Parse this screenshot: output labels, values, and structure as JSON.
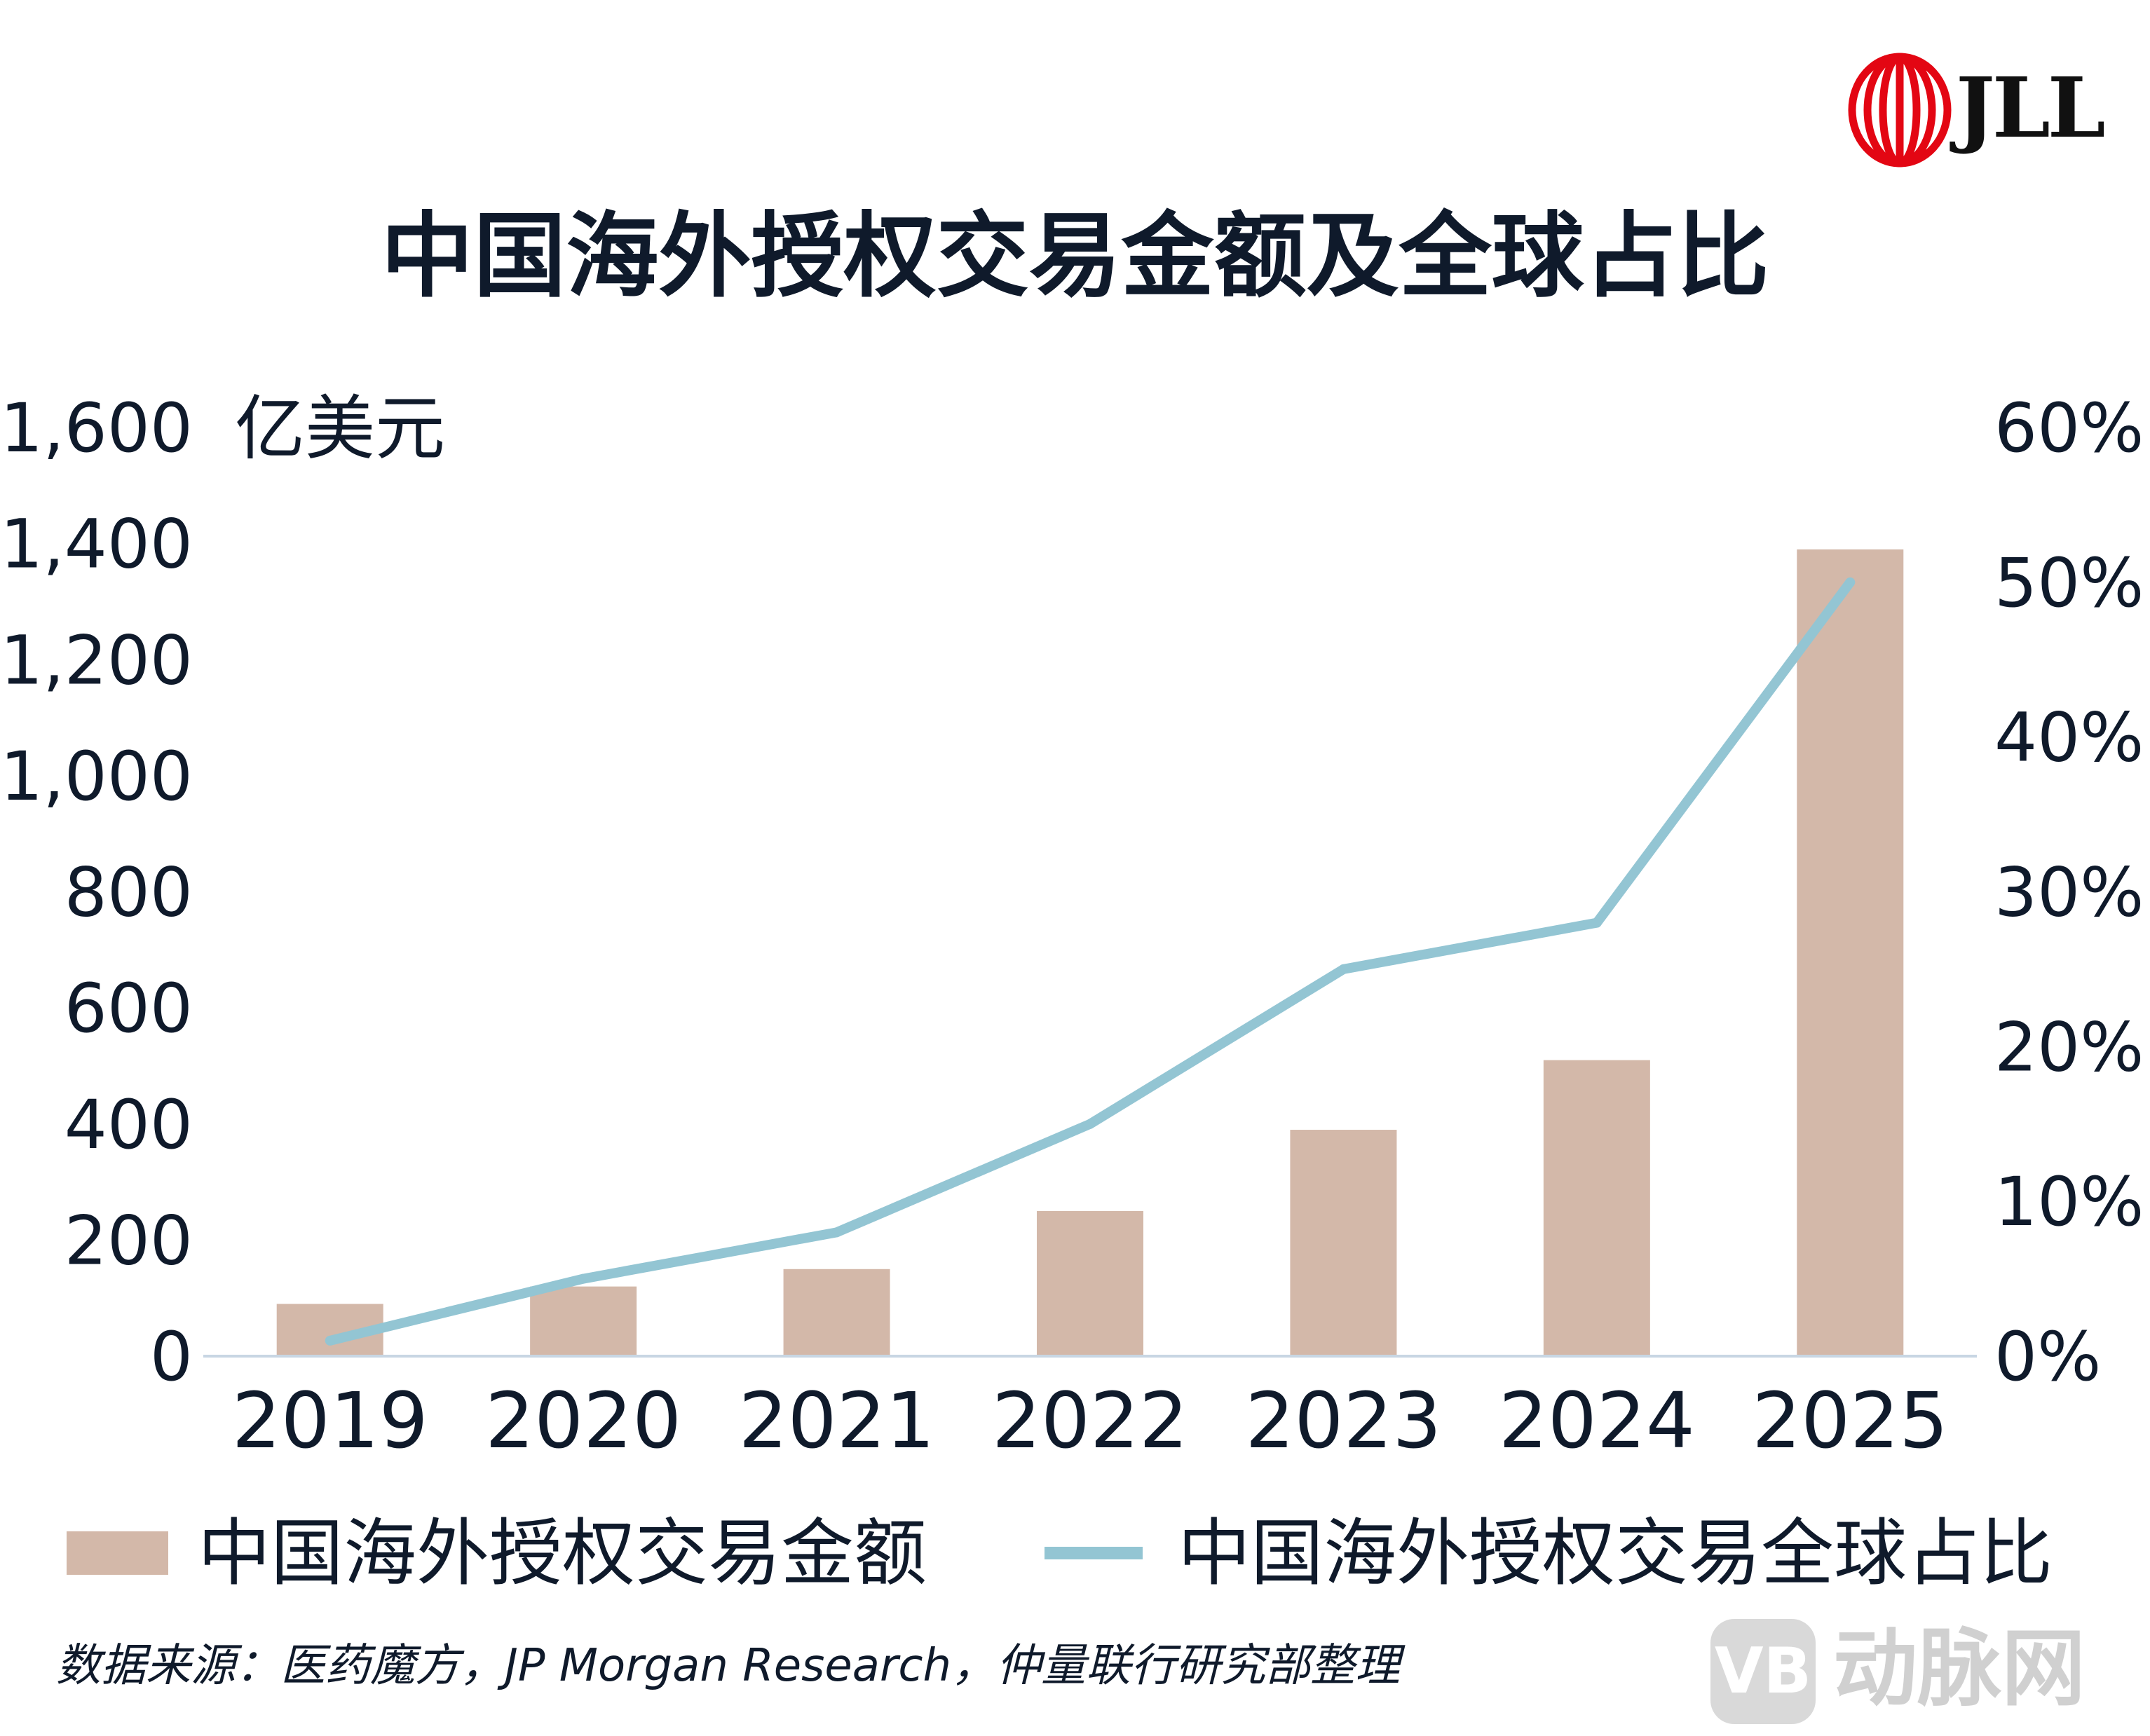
{
  "brand": {
    "logo_text": "JLL",
    "logo_color": "#e30613"
  },
  "watermark": {
    "badge": "VB",
    "text": "动脉网"
  },
  "source": "数据来源：医药魔方，JP Morgan Research，仲量联行研究部整理",
  "chart_data": {
    "type": "bar",
    "title": "中国海外授权交易金额及全球占比",
    "categories": [
      "2019",
      "2020",
      "2021",
      "2022",
      "2023",
      "2024",
      "2025"
    ],
    "y_left": {
      "unit_label": "亿美元",
      "ylim": [
        0,
        1600
      ],
      "ticks": [
        0,
        200,
        400,
        600,
        800,
        1000,
        1200,
        1400,
        1600
      ],
      "tick_labels": [
        "0",
        "200",
        "400",
        "600",
        "800",
        "1,000",
        "1,200",
        "1,400",
        "1,600"
      ]
    },
    "y_right": {
      "ylim": [
        0,
        60
      ],
      "ticks": [
        0,
        10,
        20,
        30,
        40,
        50,
        60
      ],
      "tick_labels": [
        "0%",
        "10%",
        "20%",
        "30%",
        "40%",
        "50%",
        "60%"
      ]
    },
    "series": [
      {
        "name": "中国海外授权交易金额",
        "type": "bar",
        "axis": "left",
        "color": "#d3b8a9",
        "values": [
          90,
          120,
          150,
          250,
          390,
          510,
          1390
        ]
      },
      {
        "name": "中国海外授权交易全球占比",
        "type": "line",
        "axis": "right",
        "color": "#93c5d3",
        "values": [
          1,
          5,
          8,
          15,
          25,
          28,
          50
        ]
      }
    ],
    "grid": false,
    "legend_position": "bottom"
  }
}
